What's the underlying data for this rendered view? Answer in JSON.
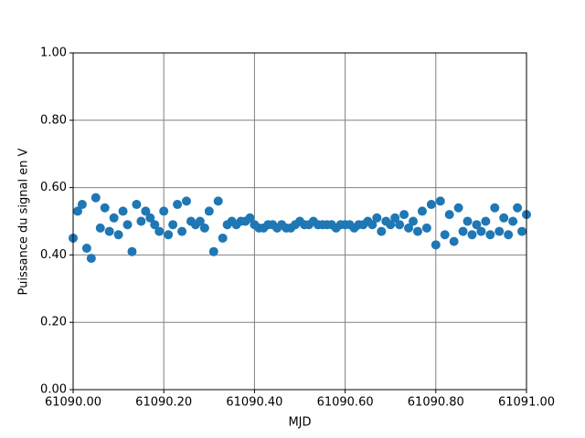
{
  "chart_data": {
    "type": "scatter",
    "xlabel": "MJD",
    "ylabel": "Puissance du signal en V",
    "x": [
      61090.0,
      61090.01,
      61090.02,
      61090.03,
      61090.04,
      61090.05,
      61090.06,
      61090.07,
      61090.08,
      61090.09,
      61090.1,
      61090.11,
      61090.12,
      61090.13,
      61090.14,
      61090.15,
      61090.16,
      61090.17,
      61090.18,
      61090.19,
      61090.2,
      61090.21,
      61090.22,
      61090.23,
      61090.24,
      61090.25,
      61090.26,
      61090.27,
      61090.28,
      61090.29,
      61090.3,
      61090.31,
      61090.32,
      61090.33,
      61090.34,
      61090.35,
      61090.36,
      61090.37,
      61090.38,
      61090.39,
      61090.4,
      61090.41,
      61090.42,
      61090.43,
      61090.44,
      61090.45,
      61090.46,
      61090.47,
      61090.48,
      61090.49,
      61090.5,
      61090.51,
      61090.52,
      61090.53,
      61090.54,
      61090.55,
      61090.56,
      61090.57,
      61090.58,
      61090.59,
      61090.6,
      61090.61,
      61090.62,
      61090.63,
      61090.64,
      61090.65,
      61090.66,
      61090.67,
      61090.68,
      61090.69,
      61090.7,
      61090.71,
      61090.72,
      61090.73,
      61090.74,
      61090.75,
      61090.76,
      61090.77,
      61090.78,
      61090.79,
      61090.8,
      61090.81,
      61090.82,
      61090.83,
      61090.84,
      61090.85,
      61090.86,
      61090.87,
      61090.88,
      61090.89,
      61090.9,
      61090.91,
      61090.92,
      61090.93,
      61090.94,
      61090.95,
      61090.96,
      61090.97,
      61090.98,
      61090.99,
      61091.0
    ],
    "values": [
      0.45,
      0.53,
      0.55,
      0.42,
      0.39,
      0.57,
      0.48,
      0.54,
      0.47,
      0.51,
      0.46,
      0.53,
      0.49,
      0.41,
      0.55,
      0.5,
      0.53,
      0.51,
      0.49,
      0.47,
      0.53,
      0.46,
      0.49,
      0.55,
      0.47,
      0.56,
      0.5,
      0.49,
      0.5,
      0.48,
      0.53,
      0.41,
      0.56,
      0.45,
      0.49,
      0.5,
      0.49,
      0.5,
      0.5,
      0.51,
      0.49,
      0.48,
      0.48,
      0.49,
      0.49,
      0.48,
      0.49,
      0.48,
      0.48,
      0.49,
      0.5,
      0.49,
      0.49,
      0.5,
      0.49,
      0.49,
      0.49,
      0.49,
      0.48,
      0.49,
      0.49,
      0.49,
      0.48,
      0.49,
      0.49,
      0.5,
      0.49,
      0.51,
      0.47,
      0.5,
      0.49,
      0.51,
      0.49,
      0.52,
      0.48,
      0.5,
      0.47,
      0.53,
      0.48,
      0.55,
      0.43,
      0.56,
      0.46,
      0.52,
      0.44,
      0.54,
      0.47,
      0.5,
      0.46,
      0.49,
      0.47,
      0.5,
      0.46,
      0.54,
      0.47,
      0.51,
      0.46,
      0.5,
      0.54,
      0.47,
      0.52
    ],
    "color": "#1f77b4",
    "xlim": [
      61090,
      61091
    ],
    "xticks": [
      {
        "value": 61090,
        "label": "61090.00"
      },
      {
        "value": 61090.2,
        "label": "61090.20"
      },
      {
        "value": 61090.4,
        "label": "61090.40"
      },
      {
        "value": 61090.6,
        "label": "61090.60"
      },
      {
        "value": 61090.8,
        "label": "61090.80"
      },
      {
        "value": 61091,
        "label": "61091.00"
      }
    ],
    "ylim": [
      0,
      1
    ],
    "yticks": [
      {
        "value": 0,
        "label": "0.00"
      },
      {
        "value": 0.2,
        "label": "0.20"
      },
      {
        "value": 0.4,
        "label": "0.40"
      },
      {
        "value": 0.6,
        "label": "0.60"
      },
      {
        "value": 0.8,
        "label": "0.80"
      },
      {
        "value": 1,
        "label": "1.00"
      }
    ],
    "grid": true
  }
}
